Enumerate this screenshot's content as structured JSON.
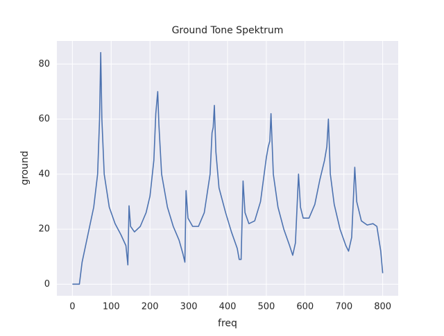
{
  "chart_data": {
    "type": "line",
    "title": "Ground Tone Spektrum",
    "x_label": "freq",
    "y_label": "ground",
    "x": [
      0,
      18,
      25,
      40,
      55,
      65,
      70,
      73,
      76,
      82,
      95,
      110,
      125,
      138,
      143,
      146,
      150,
      160,
      175,
      190,
      200,
      210,
      215,
      220,
      223,
      230,
      245,
      260,
      275,
      285,
      290,
      293,
      298,
      310,
      325,
      340,
      355,
      360,
      363,
      366,
      370,
      378,
      395,
      410,
      425,
      430,
      435,
      440,
      445,
      455,
      470,
      485,
      500,
      505,
      509,
      512,
      518,
      530,
      545,
      560,
      568,
      575,
      583,
      588,
      595,
      610,
      625,
      638,
      650,
      656,
      660,
      665,
      675,
      690,
      705,
      712,
      720,
      728,
      733,
      745,
      760,
      775,
      785,
      795,
      800
    ],
    "series": [
      {
        "name": "ground",
        "color": "#4c72b0",
        "values": [
          0,
          0,
          8,
          18,
          28,
          40,
          60,
          84.2,
          60,
          40,
          28,
          22,
          18,
          14,
          7,
          28.5,
          21,
          19,
          21,
          26,
          32,
          45,
          62,
          70,
          58,
          40,
          28,
          21,
          16,
          11,
          8,
          34,
          24,
          21,
          21,
          26,
          40,
          55,
          57,
          65,
          48,
          35,
          26,
          19,
          13,
          9,
          9,
          37.5,
          26,
          22,
          23,
          30,
          46,
          50,
          52,
          62,
          40,
          28,
          20,
          14,
          10.5,
          15,
          40,
          28,
          24,
          24,
          29,
          38,
          45,
          50,
          60,
          40,
          29,
          20,
          14,
          12,
          17,
          42.5,
          30,
          23,
          21.5,
          22,
          21,
          12,
          4
        ]
      }
    ],
    "xlim": [
      -40,
      840
    ],
    "ylim": [
      -4.2,
      88.4
    ],
    "xticks": [
      0,
      100,
      200,
      300,
      400,
      500,
      600,
      700,
      800
    ],
    "yticks": [
      0,
      20,
      40,
      60,
      80
    ],
    "grid": true
  }
}
